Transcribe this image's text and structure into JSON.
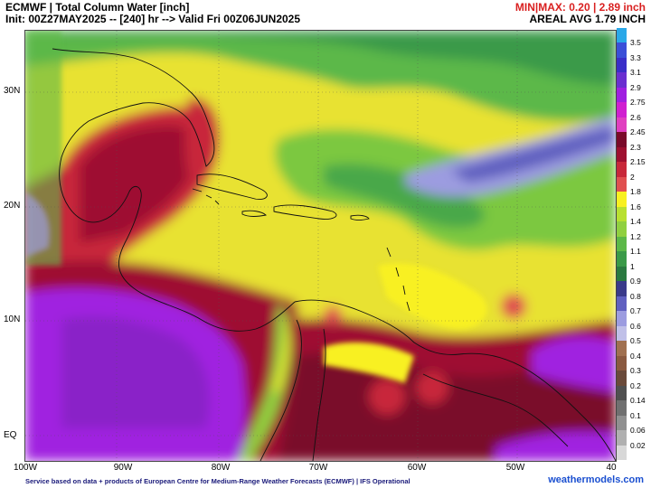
{
  "header": {
    "title_line1": "ECMWF | Total Column Water [inch]",
    "title_line2": "Init: 00Z27MAY2025 -- [240] hr --> Valid Fri 00Z06JUN2025",
    "minmax": "MIN|MAX: 0.20 | 2.89 inch",
    "areal_avg": "AREAL AVG 1.79 INCH"
  },
  "map": {
    "lat_labels": [
      "30N",
      "20N",
      "10N",
      "EQ"
    ],
    "lon_labels": [
      "100W",
      "90W",
      "80W",
      "70W",
      "60W",
      "50W",
      "40"
    ]
  },
  "colorbar": {
    "labels": [
      "3.5",
      "3.3",
      "3.1",
      "2.9",
      "2.75",
      "2.6",
      "2.45",
      "2.3",
      "2.15",
      "2",
      "1.8",
      "1.6",
      "1.4",
      "1.2",
      "1.1",
      "1",
      "0.9",
      "0.8",
      "0.7",
      "0.6",
      "0.5",
      "0.4",
      "0.3",
      "0.2",
      "0.14",
      "0.1",
      "0.06",
      "0.02"
    ],
    "colors": [
      "#2aa8e8",
      "#3b4fd8",
      "#3a2ec8",
      "#6a2fd0",
      "#a020e0",
      "#d020d0",
      "#e040c0",
      "#7a0a2a",
      "#9e1030",
      "#c8283a",
      "#e05050",
      "#f8f020",
      "#b8e030",
      "#90d040",
      "#5cb848",
      "#3a9a48",
      "#2a7a40",
      "#3a3a8a",
      "#6060c0",
      "#9c9ce0",
      "#c0c0e8",
      "#a07050",
      "#8a5a40",
      "#6a4a3a",
      "#505050",
      "#707070",
      "#909090",
      "#b0b0b0",
      "#d8d8d8"
    ]
  },
  "footer": {
    "credit": "Service based on data + products of European Centre for Medium-Range Weather Forecasts (ECMWF) | IFS Operational",
    "brand": "weathermodels.com"
  }
}
